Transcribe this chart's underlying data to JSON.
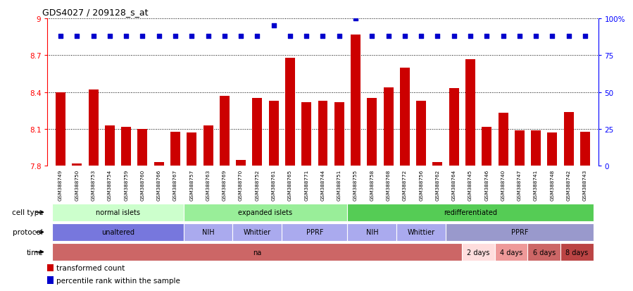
{
  "title": "GDS4027 / 209128_s_at",
  "samples": [
    "GSM388749",
    "GSM388750",
    "GSM388753",
    "GSM388754",
    "GSM388759",
    "GSM388760",
    "GSM388766",
    "GSM388767",
    "GSM388757",
    "GSM388763",
    "GSM388769",
    "GSM388770",
    "GSM388752",
    "GSM388761",
    "GSM388765",
    "GSM388771",
    "GSM388744",
    "GSM388751",
    "GSM388755",
    "GSM388758",
    "GSM388768",
    "GSM388772",
    "GSM388756",
    "GSM388762",
    "GSM388764",
    "GSM388745",
    "GSM388746",
    "GSM388740",
    "GSM388747",
    "GSM388741",
    "GSM388748",
    "GSM388742",
    "GSM388743"
  ],
  "bar_values": [
    8.4,
    7.82,
    8.42,
    8.13,
    8.12,
    8.1,
    7.83,
    8.08,
    8.07,
    8.13,
    8.37,
    7.85,
    8.35,
    8.33,
    8.68,
    8.32,
    8.33,
    8.32,
    8.87,
    8.35,
    8.44,
    8.6,
    8.33,
    7.83,
    8.43,
    8.67,
    8.12,
    8.23,
    8.09,
    8.09,
    8.07,
    8.24,
    8.08
  ],
  "percentile_values": [
    88,
    88,
    88,
    88,
    88,
    88,
    88,
    88,
    88,
    88,
    88,
    88,
    88,
    95,
    88,
    88,
    88,
    88,
    100,
    88,
    88,
    88,
    88,
    88,
    88,
    88,
    88,
    88,
    88,
    88,
    88,
    88,
    88
  ],
  "bar_color": "#cc0000",
  "percentile_color": "#0000cc",
  "ymin": 7.8,
  "ymax": 9.0,
  "yticks": [
    7.8,
    8.1,
    8.4,
    8.7,
    9.0
  ],
  "ytick_labels": [
    "7.8",
    "8.1",
    "8.4",
    "8.7",
    "9"
  ],
  "right_yticks": [
    0,
    25,
    50,
    75,
    100
  ],
  "right_ytick_labels": [
    "0",
    "25",
    "50",
    "75",
    "100%"
  ],
  "cell_type_groups": [
    {
      "label": "normal islets",
      "start": 0,
      "end": 7,
      "color": "#ccffcc"
    },
    {
      "label": "expanded islets",
      "start": 8,
      "end": 17,
      "color": "#99ee99"
    },
    {
      "label": "redifferentiated",
      "start": 18,
      "end": 32,
      "color": "#55cc55"
    }
  ],
  "protocol_groups": [
    {
      "label": "unaltered",
      "start": 0,
      "end": 7,
      "color": "#7777dd"
    },
    {
      "label": "NIH",
      "start": 8,
      "end": 10,
      "color": "#aaaaee"
    },
    {
      "label": "Whittier",
      "start": 11,
      "end": 13,
      "color": "#aaaaee"
    },
    {
      "label": "PPRF",
      "start": 14,
      "end": 17,
      "color": "#aaaaee"
    },
    {
      "label": "NIH",
      "start": 18,
      "end": 20,
      "color": "#aaaaee"
    },
    {
      "label": "Whittier",
      "start": 21,
      "end": 23,
      "color": "#aaaaee"
    },
    {
      "label": "PPRF",
      "start": 24,
      "end": 32,
      "color": "#9999cc"
    }
  ],
  "time_groups": [
    {
      "label": "na",
      "start": 0,
      "end": 24,
      "color": "#cc6666"
    },
    {
      "label": "2 days",
      "start": 25,
      "end": 26,
      "color": "#ffdddd"
    },
    {
      "label": "4 days",
      "start": 27,
      "end": 28,
      "color": "#ee9999"
    },
    {
      "label": "6 days",
      "start": 29,
      "end": 30,
      "color": "#cc6666"
    },
    {
      "label": "8 days",
      "start": 31,
      "end": 32,
      "color": "#bb4444"
    }
  ],
  "legend_items": [
    {
      "color": "#cc0000",
      "label": "transformed count"
    },
    {
      "color": "#0000cc",
      "label": "percentile rank within the sample"
    }
  ],
  "row_labels": [
    "cell type",
    "protocol",
    "time"
  ],
  "xtick_bg": "#dddddd"
}
